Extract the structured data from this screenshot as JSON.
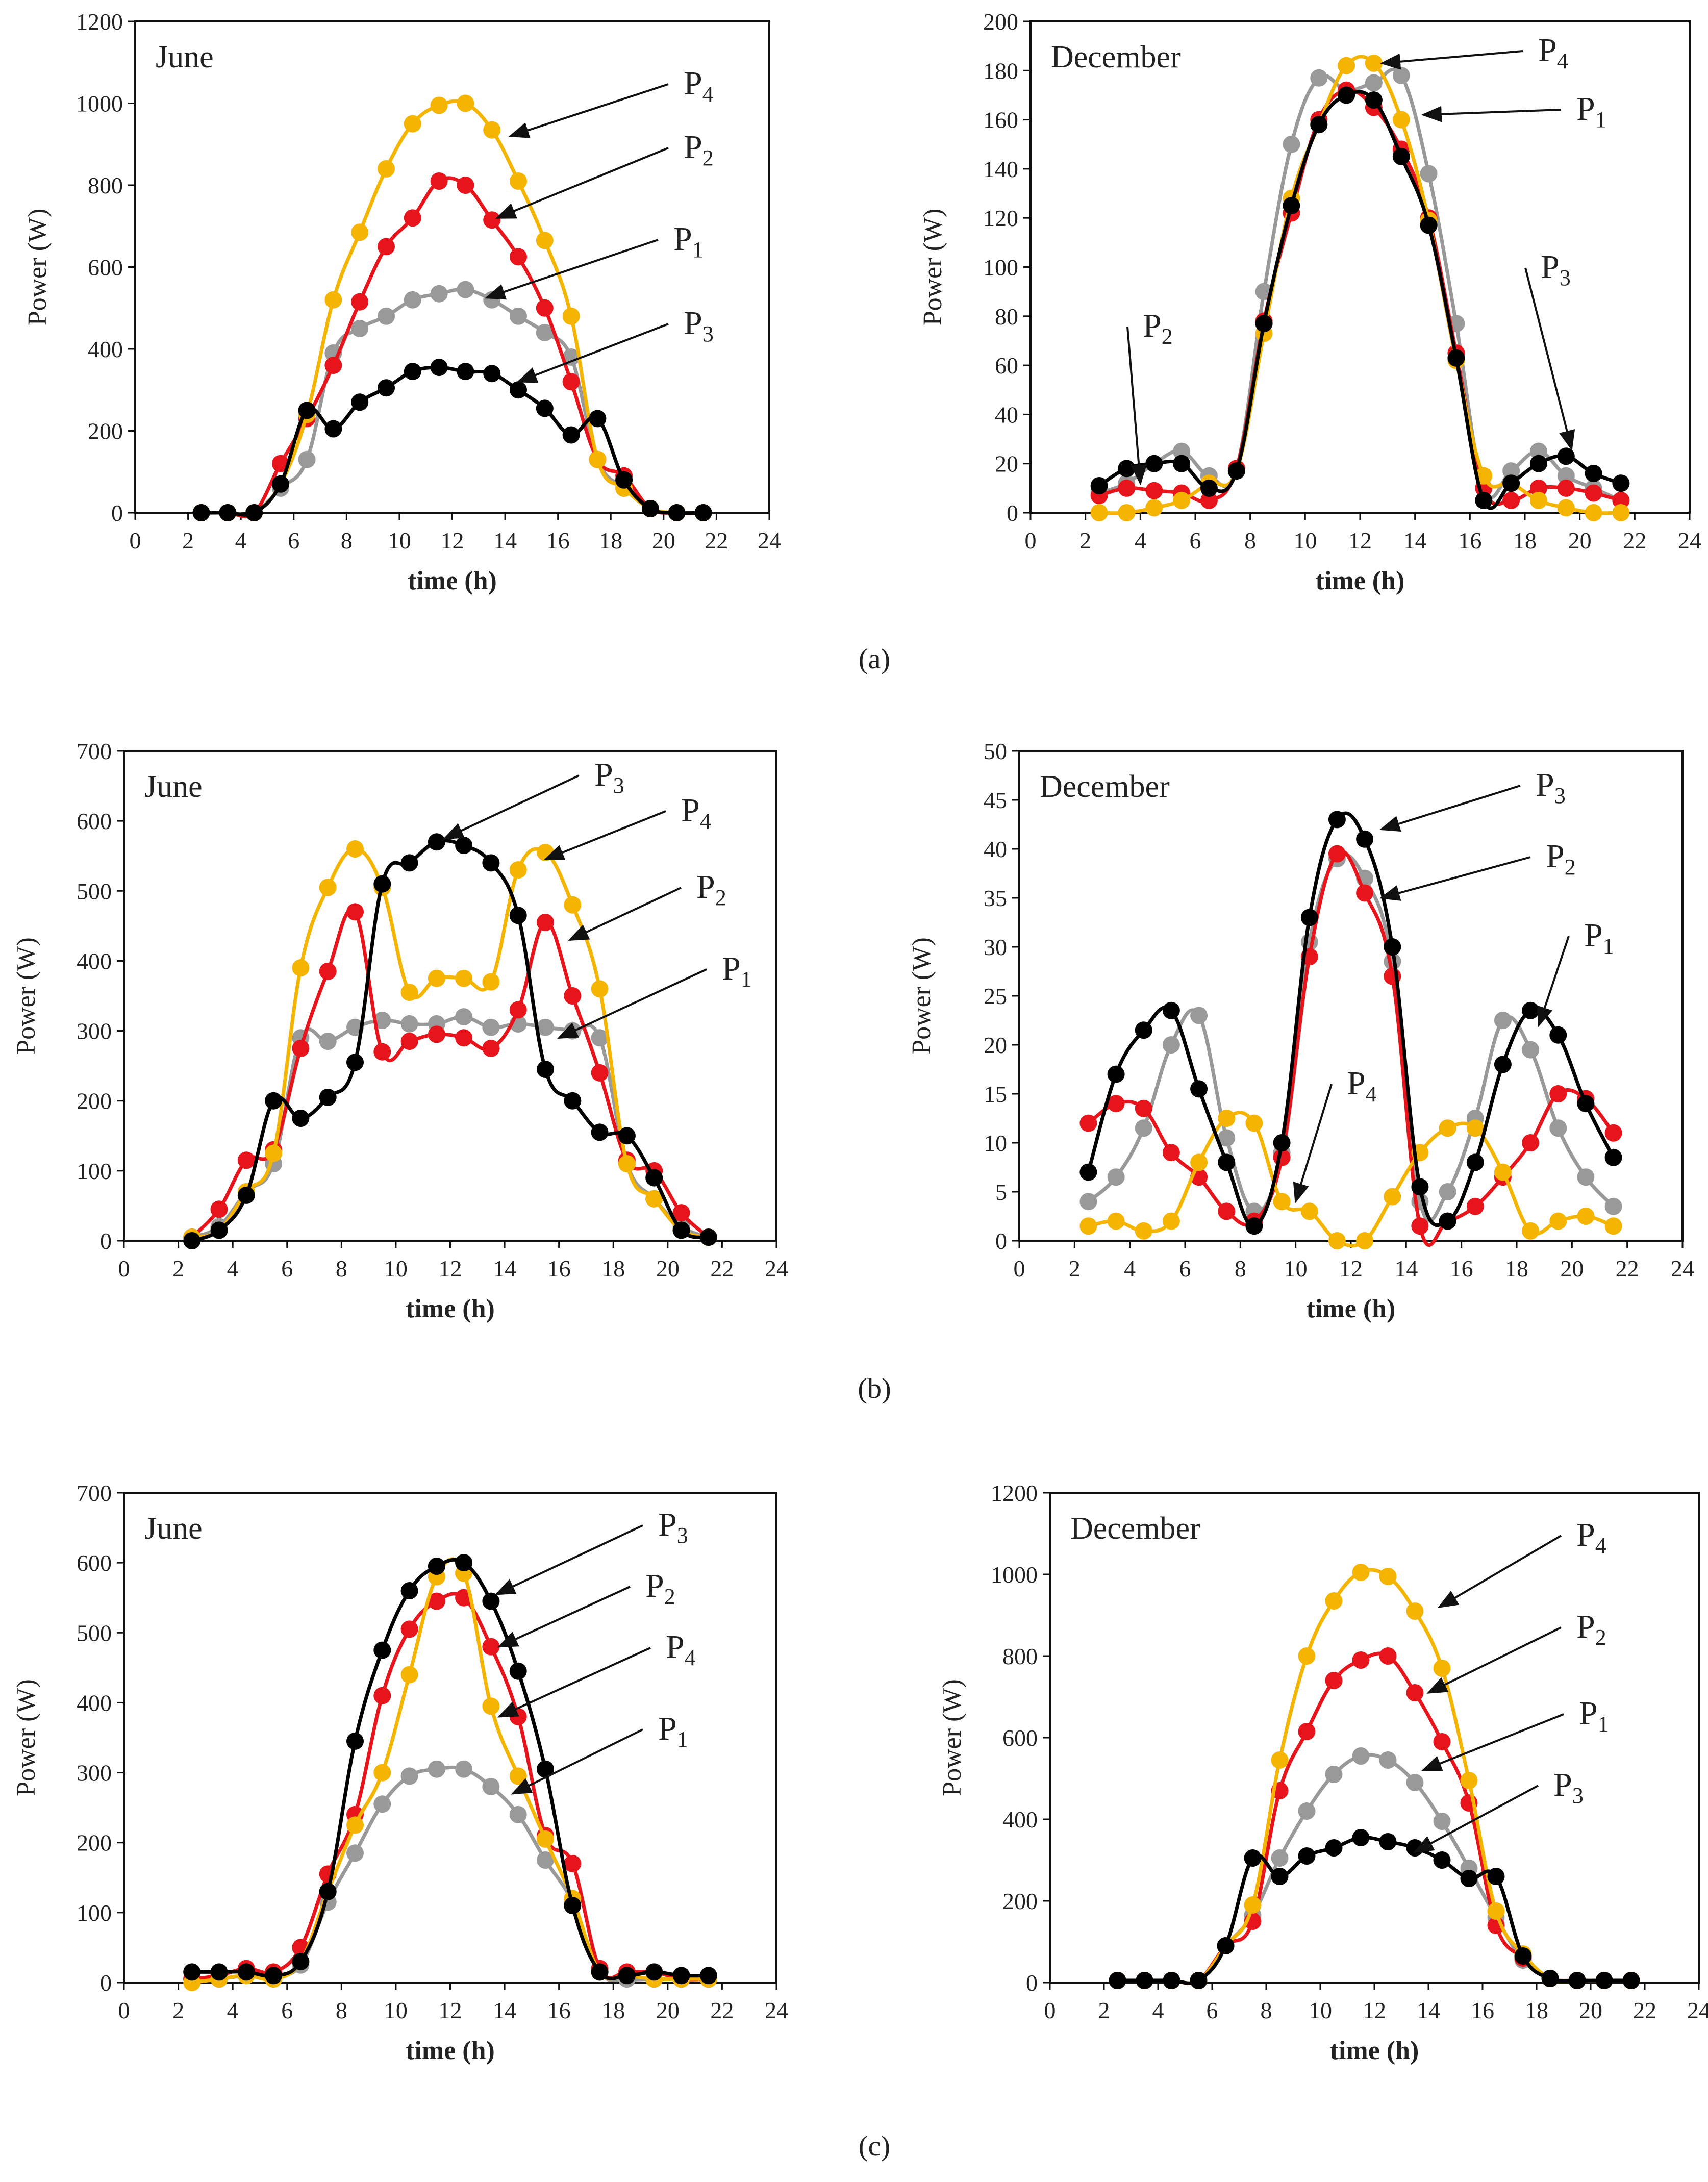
{
  "colors": {
    "P1": "#999999",
    "P2": "#e8141b",
    "P3": "#000000",
    "P4": "#f5b400"
  },
  "panel_labels": [
    "(a)",
    "(b)",
    "(c)"
  ],
  "chart_data": [
    {
      "type": "line",
      "panel": "(a)",
      "month": "June",
      "xlabel": "time (h)",
      "ylabel": "Power (W)",
      "xlim": [
        0,
        24
      ],
      "ylim": [
        0,
        1200
      ],
      "yticks": [
        0,
        200,
        400,
        600,
        800,
        1000,
        1200
      ],
      "xticks": [
        0,
        2,
        4,
        6,
        8,
        10,
        12,
        14,
        16,
        18,
        20,
        22,
        24
      ],
      "x": [
        2.5,
        3.5,
        4.5,
        5.5,
        6.5,
        7.5,
        8.5,
        9.5,
        10.5,
        11.5,
        12.5,
        13.5,
        14.5,
        15.5,
        16.5,
        17.5,
        18.5,
        19.5,
        20.5,
        21.5
      ],
      "series": [
        {
          "name": "P1",
          "values": [
            0,
            0,
            0,
            60,
            130,
            390,
            450,
            480,
            520,
            535,
            545,
            520,
            480,
            440,
            380,
            130,
            60,
            10,
            0,
            0
          ]
        },
        {
          "name": "P2",
          "values": [
            0,
            0,
            0,
            120,
            230,
            360,
            515,
            650,
            720,
            810,
            800,
            715,
            625,
            500,
            320,
            130,
            90,
            10,
            0,
            0
          ]
        },
        {
          "name": "P3",
          "values": [
            0,
            0,
            0,
            70,
            250,
            205,
            270,
            305,
            345,
            355,
            345,
            340,
            300,
            255,
            190,
            230,
            80,
            10,
            0,
            0
          ]
        },
        {
          "name": "P4",
          "values": [
            0,
            0,
            0,
            70,
            240,
            520,
            685,
            840,
            950,
            995,
            1000,
            935,
            810,
            665,
            480,
            130,
            60,
            10,
            0,
            0
          ]
        }
      ],
      "annotations": [
        {
          "label": "P",
          "sub": "4",
          "series": "P4"
        },
        {
          "label": "P",
          "sub": "2",
          "series": "P2"
        },
        {
          "label": "P",
          "sub": "1",
          "series": "P1"
        },
        {
          "label": "P",
          "sub": "3",
          "series": "P3"
        }
      ]
    },
    {
      "type": "line",
      "panel": "(a)",
      "month": "December",
      "xlabel": "time (h)",
      "ylabel": "Power (W)",
      "xlim": [
        0,
        24
      ],
      "ylim": [
        0,
        200
      ],
      "yticks": [
        0,
        20,
        40,
        60,
        80,
        100,
        120,
        140,
        160,
        180,
        200
      ],
      "xticks": [
        0,
        2,
        4,
        6,
        8,
        10,
        12,
        14,
        16,
        18,
        20,
        22,
        24
      ],
      "x": [
        2.5,
        3.5,
        4.5,
        5.5,
        6.5,
        7.5,
        8.5,
        9.5,
        10.5,
        11.5,
        12.5,
        13.5,
        14.5,
        15.5,
        16.5,
        17.5,
        18.5,
        19.5,
        20.5,
        21.5
      ],
      "series": [
        {
          "name": "P1",
          "values": [
            8,
            12,
            20,
            25,
            15,
            18,
            90,
            150,
            177,
            172,
            175,
            178,
            138,
            77,
            10,
            17,
            25,
            15,
            10,
            5
          ]
        },
        {
          "name": "P2",
          "values": [
            7,
            10,
            9,
            8,
            5,
            18,
            78,
            122,
            160,
            172,
            165,
            148,
            120,
            65,
            10,
            5,
            10,
            10,
            8,
            5
          ]
        },
        {
          "name": "P3",
          "values": [
            11,
            18,
            20,
            20,
            10,
            17,
            77,
            125,
            158,
            170,
            168,
            145,
            117,
            63,
            5,
            12,
            20,
            23,
            16,
            12
          ]
        },
        {
          "name": "P4",
          "values": [
            0,
            0,
            2,
            5,
            12,
            17,
            73,
            128,
            158,
            182,
            183,
            160,
            119,
            62,
            15,
            12,
            5,
            2,
            0,
            0
          ]
        }
      ],
      "annotations": [
        {
          "label": "P",
          "sub": "4",
          "series": "P4"
        },
        {
          "label": "P",
          "sub": "1",
          "series": "P1"
        },
        {
          "label": "P",
          "sub": "2",
          "series": "P2"
        },
        {
          "label": "P",
          "sub": "3",
          "series": "P3"
        }
      ]
    },
    {
      "type": "line",
      "panel": "(b)",
      "month": "June",
      "xlabel": "time (h)",
      "ylabel": "Power (W)",
      "xlim": [
        0,
        24
      ],
      "ylim": [
        0,
        700
      ],
      "yticks": [
        0,
        100,
        200,
        300,
        400,
        500,
        600,
        700
      ],
      "xticks": [
        0,
        2,
        4,
        6,
        8,
        10,
        12,
        14,
        16,
        18,
        20,
        22,
        24
      ],
      "x": [
        2.5,
        3.5,
        4.5,
        5.5,
        6.5,
        7.5,
        8.5,
        9.5,
        10.5,
        11.5,
        12.5,
        13.5,
        14.5,
        15.5,
        16.5,
        17.5,
        18.5,
        19.5,
        20.5,
        21.5
      ],
      "series": [
        {
          "name": "P1",
          "values": [
            5,
            20,
            70,
            110,
            290,
            285,
            305,
            315,
            310,
            310,
            320,
            305,
            310,
            305,
            300,
            290,
            110,
            60,
            20,
            5
          ]
        },
        {
          "name": "P2",
          "values": [
            5,
            45,
            115,
            130,
            275,
            385,
            470,
            270,
            285,
            295,
            290,
            275,
            330,
            455,
            350,
            240,
            115,
            100,
            40,
            5
          ]
        },
        {
          "name": "P3",
          "values": [
            0,
            15,
            65,
            200,
            175,
            205,
            255,
            510,
            540,
            570,
            565,
            540,
            465,
            245,
            200,
            155,
            150,
            90,
            15,
            5
          ]
        },
        {
          "name": "P4",
          "values": [
            5,
            15,
            70,
            125,
            390,
            505,
            560,
            505,
            355,
            375,
            375,
            370,
            530,
            555,
            480,
            360,
            110,
            60,
            15,
            5
          ]
        }
      ],
      "annotations": [
        {
          "label": "P",
          "sub": "3",
          "series": "P3"
        },
        {
          "label": "P",
          "sub": "4",
          "series": "P4"
        },
        {
          "label": "P",
          "sub": "2",
          "series": "P2"
        },
        {
          "label": "P",
          "sub": "1",
          "series": "P1"
        }
      ]
    },
    {
      "type": "line",
      "panel": "(b)",
      "month": "December",
      "xlabel": "time (h)",
      "ylabel": "Power (W)",
      "xlim": [
        0,
        24
      ],
      "ylim": [
        0,
        50
      ],
      "yticks": [
        0,
        5,
        10,
        15,
        20,
        25,
        30,
        35,
        40,
        45,
        50
      ],
      "xticks": [
        0,
        2,
        4,
        6,
        8,
        10,
        12,
        14,
        16,
        18,
        20,
        22,
        24
      ],
      "x": [
        2.5,
        3.5,
        4.5,
        5.5,
        6.5,
        7.5,
        8.5,
        9.5,
        10.5,
        11.5,
        12.5,
        13.5,
        14.5,
        15.5,
        16.5,
        17.5,
        18.5,
        19.5,
        20.5,
        21.5
      ],
      "series": [
        {
          "name": "P1",
          "values": [
            4,
            6.5,
            11.5,
            20,
            23,
            10.5,
            3,
            9,
            30.5,
            39,
            37,
            28.5,
            4,
            5,
            12.5,
            22.5,
            19.5,
            11.5,
            6.5,
            3.5
          ]
        },
        {
          "name": "P2",
          "values": [
            12,
            14,
            13.5,
            9,
            6.5,
            3,
            2,
            8.5,
            29,
            39.5,
            35.5,
            27,
            1.5,
            2,
            3.5,
            6.5,
            10,
            15,
            14.5,
            11
          ]
        },
        {
          "name": "P3",
          "values": [
            7,
            17,
            21.5,
            23.5,
            15.5,
            8,
            1.5,
            10,
            33,
            43,
            41,
            30,
            5.5,
            2,
            8,
            18,
            23.5,
            21,
            14,
            8.5
          ]
        },
        {
          "name": "P4",
          "values": [
            1.5,
            2,
            1,
            2,
            8,
            12.5,
            12,
            4,
            3,
            0,
            0,
            4.5,
            9,
            11.5,
            11.5,
            7,
            1,
            2,
            2.5,
            1.5
          ]
        }
      ],
      "annotations": [
        {
          "label": "P",
          "sub": "3",
          "series": "P3"
        },
        {
          "label": "P",
          "sub": "2",
          "series": "P2"
        },
        {
          "label": "P",
          "sub": "1",
          "series": "P1"
        },
        {
          "label": "P",
          "sub": "4",
          "series": "P4"
        }
      ]
    },
    {
      "type": "line",
      "panel": "(c)",
      "month": "June",
      "xlabel": "time (h)",
      "ylabel": "Power (W)",
      "xlim": [
        0,
        24
      ],
      "ylim": [
        0,
        700
      ],
      "yticks": [
        0,
        100,
        200,
        300,
        400,
        500,
        600,
        700
      ],
      "xticks": [
        0,
        2,
        4,
        6,
        8,
        10,
        12,
        14,
        16,
        18,
        20,
        22,
        24
      ],
      "x": [
        2.5,
        3.5,
        4.5,
        5.5,
        6.5,
        7.5,
        8.5,
        9.5,
        10.5,
        11.5,
        12.5,
        13.5,
        14.5,
        15.5,
        16.5,
        17.5,
        18.5,
        19.5,
        20.5,
        21.5
      ],
      "series": [
        {
          "name": "P1",
          "values": [
            5,
            5,
            10,
            10,
            25,
            115,
            185,
            255,
            295,
            305,
            305,
            280,
            240,
            175,
            115,
            15,
            5,
            5,
            5,
            5
          ]
        },
        {
          "name": "P2",
          "values": [
            5,
            10,
            20,
            15,
            50,
            155,
            240,
            410,
            505,
            545,
            550,
            480,
            380,
            210,
            170,
            20,
            15,
            15,
            5,
            5
          ]
        },
        {
          "name": "P3",
          "values": [
            15,
            15,
            15,
            10,
            30,
            130,
            345,
            475,
            560,
            595,
            600,
            545,
            445,
            305,
            110,
            15,
            10,
            15,
            10,
            10
          ]
        },
        {
          "name": "P4",
          "values": [
            0,
            5,
            10,
            5,
            30,
            130,
            225,
            300,
            440,
            580,
            585,
            395,
            295,
            205,
            120,
            15,
            10,
            5,
            5,
            5
          ]
        }
      ],
      "annotations": [
        {
          "label": "P",
          "sub": "3",
          "series": "P3"
        },
        {
          "label": "P",
          "sub": "2",
          "series": "P2"
        },
        {
          "label": "P",
          "sub": "4",
          "series": "P4"
        },
        {
          "label": "P",
          "sub": "1",
          "series": "P1"
        }
      ]
    },
    {
      "type": "line",
      "panel": "(c)",
      "month": "December",
      "xlabel": "time (h)",
      "ylabel": "Power (W)",
      "xlim": [
        0,
        24
      ],
      "ylim": [
        0,
        1200
      ],
      "yticks": [
        0,
        200,
        400,
        600,
        800,
        1000,
        1200
      ],
      "xticks": [
        0,
        2,
        4,
        6,
        8,
        10,
        12,
        14,
        16,
        18,
        20,
        22,
        24
      ],
      "x": [
        2.5,
        3.5,
        4.5,
        5.5,
        6.5,
        7.5,
        8.5,
        9.5,
        10.5,
        11.5,
        12.5,
        13.5,
        14.5,
        15.5,
        16.5,
        17.5,
        18.5,
        19.5,
        20.5,
        21.5
      ],
      "series": [
        {
          "name": "P1",
          "values": [
            5,
            5,
            5,
            5,
            90,
            165,
            305,
            420,
            510,
            555,
            545,
            490,
            395,
            280,
            160,
            55,
            10,
            5,
            5,
            5
          ]
        },
        {
          "name": "P2",
          "values": [
            5,
            5,
            5,
            5,
            90,
            150,
            470,
            615,
            740,
            790,
            800,
            710,
            590,
            440,
            140,
            60,
            10,
            5,
            5,
            5
          ]
        },
        {
          "name": "P3",
          "values": [
            5,
            5,
            5,
            5,
            90,
            305,
            260,
            310,
            330,
            355,
            345,
            330,
            300,
            255,
            260,
            65,
            10,
            5,
            5,
            5
          ]
        },
        {
          "name": "P4",
          "values": [
            5,
            5,
            5,
            5,
            90,
            190,
            545,
            800,
            935,
            1005,
            995,
            910,
            770,
            495,
            175,
            70,
            10,
            5,
            5,
            5
          ]
        }
      ],
      "annotations": [
        {
          "label": "P",
          "sub": "4",
          "series": "P4"
        },
        {
          "label": "P",
          "sub": "2",
          "series": "P2"
        },
        {
          "label": "P",
          "sub": "1",
          "series": "P1"
        },
        {
          "label": "P",
          "sub": "3",
          "series": "P3"
        }
      ]
    }
  ]
}
